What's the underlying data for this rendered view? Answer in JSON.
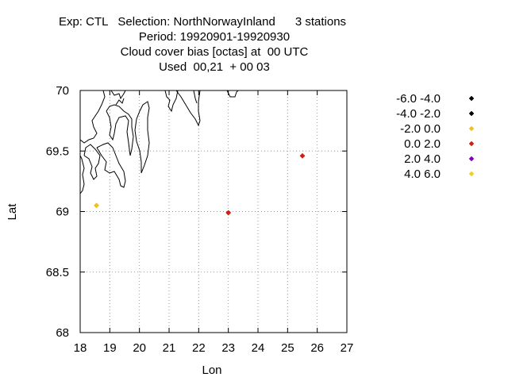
{
  "header": {
    "line1": "Exp: CTL   Selection: NorthNorwayInland      3 stations",
    "line2": "Period: 19920901-19920930",
    "line3": "Cloud cover bias [octas] at  00 UTC",
    "line4": "Used  00,21  + 00 03"
  },
  "chart_data": {
    "type": "scatter",
    "title": "Cloud cover bias [octas] at  00 UTC",
    "xlabel": "Lon",
    "ylabel": "Lat",
    "xlim": [
      18,
      27
    ],
    "ylim": [
      68,
      70
    ],
    "xticks": [
      "18",
      "19",
      "20",
      "21",
      "22",
      "23",
      "24",
      "25",
      "26",
      "27"
    ],
    "yticks": [
      "68",
      "68.5",
      "69",
      "69.5",
      "70"
    ],
    "grid": true,
    "legend_position": "right",
    "legend": [
      {
        "label": "-6.0 -4.0",
        "color": "#000000"
      },
      {
        "label": "-4.0 -2.0",
        "color": "#000000"
      },
      {
        "label": "-2.0 0.0",
        "color": "#f0c020"
      },
      {
        "label": "0.0 2.0",
        "color": "#d02010"
      },
      {
        "label": "2.0 4.0",
        "color": "#8000c0"
      },
      {
        "label": "4.0 6.0",
        "color": "#f0d020"
      }
    ],
    "points": [
      {
        "lon": 18.55,
        "lat": 69.05,
        "color": "#f0c020"
      },
      {
        "lon": 23.0,
        "lat": 68.99,
        "color": "#d02010"
      },
      {
        "lon": 25.5,
        "lat": 69.46,
        "color": "#d02010"
      }
    ]
  }
}
